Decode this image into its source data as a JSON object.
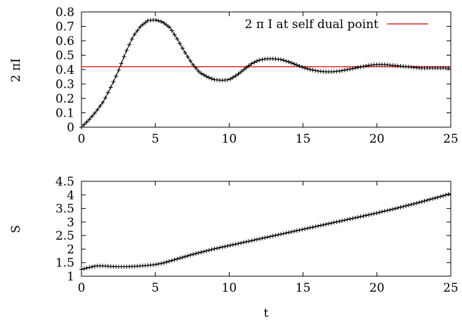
{
  "chart_data": [
    {
      "type": "line",
      "title": "",
      "xlabel": "",
      "ylabel": "2 πI",
      "xlim": [
        0,
        25
      ],
      "ylim": [
        0,
        0.8
      ],
      "xticks": [
        "0",
        "5",
        "10",
        "15",
        "20",
        "25"
      ],
      "yticks": [
        "0",
        "0.1",
        "0.2",
        "0.3",
        "0.4",
        "0.5",
        "0.6",
        "0.7",
        "0.8"
      ],
      "legend_position": "top-right",
      "series": [
        {
          "name": "",
          "marker": "plus",
          "x": [
            0,
            0.5,
            1,
            1.5,
            2,
            2.5,
            3,
            3.5,
            4,
            4.5,
            5,
            5.5,
            6,
            6.5,
            7,
            7.5,
            8,
            8.5,
            9,
            9.5,
            10,
            10.5,
            11,
            11.5,
            12,
            12.5,
            13,
            13.5,
            14,
            14.5,
            15,
            15.5,
            16,
            16.5,
            17,
            17.5,
            18,
            18.5,
            19,
            19.5,
            20,
            20.5,
            21,
            21.5,
            22,
            22.5,
            23,
            23.5,
            24,
            24.5,
            25
          ],
          "y": [
            0.0,
            0.05,
            0.11,
            0.18,
            0.28,
            0.39,
            0.52,
            0.63,
            0.7,
            0.74,
            0.745,
            0.73,
            0.69,
            0.61,
            0.52,
            0.44,
            0.38,
            0.35,
            0.33,
            0.325,
            0.33,
            0.36,
            0.4,
            0.44,
            0.465,
            0.475,
            0.475,
            0.47,
            0.455,
            0.435,
            0.415,
            0.4,
            0.39,
            0.385,
            0.385,
            0.39,
            0.4,
            0.41,
            0.42,
            0.43,
            0.435,
            0.435,
            0.43,
            0.425,
            0.42,
            0.415,
            0.41,
            0.41,
            0.41,
            0.41,
            0.41
          ]
        },
        {
          "name": "2 π I at self dual point",
          "color": "#d00000",
          "x": [
            0,
            25
          ],
          "y": [
            0.42,
            0.42
          ]
        }
      ]
    },
    {
      "type": "line",
      "title": "",
      "xlabel": "t",
      "ylabel": "S",
      "xlim": [
        0,
        25
      ],
      "ylim": [
        1,
        4.5
      ],
      "xticks": [
        "0",
        "5",
        "10",
        "15",
        "20",
        "25"
      ],
      "yticks": [
        "1",
        "1.5",
        "2",
        "2.5",
        "3",
        "3.5",
        "4",
        "4.5"
      ],
      "series": [
        {
          "name": "",
          "marker": "plus",
          "x": [
            0,
            0.5,
            1,
            1.5,
            2,
            2.5,
            3,
            3.5,
            4,
            4.5,
            5,
            5.5,
            6,
            6.5,
            7,
            7.5,
            8,
            8.5,
            9,
            9.5,
            10,
            10.5,
            11,
            11.5,
            12,
            12.5,
            13,
            13.5,
            14,
            14.5,
            15,
            15.5,
            16,
            16.5,
            17,
            17.5,
            18,
            18.5,
            19,
            19.5,
            20,
            20.5,
            21,
            21.5,
            22,
            22.5,
            23,
            23.5,
            24,
            24.5,
            25
          ],
          "y": [
            1.25,
            1.32,
            1.38,
            1.38,
            1.36,
            1.35,
            1.35,
            1.36,
            1.38,
            1.4,
            1.43,
            1.48,
            1.56,
            1.64,
            1.72,
            1.8,
            1.87,
            1.94,
            2.01,
            2.07,
            2.13,
            2.19,
            2.25,
            2.31,
            2.37,
            2.43,
            2.49,
            2.55,
            2.61,
            2.67,
            2.73,
            2.79,
            2.85,
            2.91,
            2.97,
            3.03,
            3.09,
            3.15,
            3.21,
            3.27,
            3.33,
            3.4,
            3.46,
            3.53,
            3.6,
            3.67,
            3.74,
            3.82,
            3.89,
            3.97,
            4.05
          ]
        }
      ]
    }
  ]
}
